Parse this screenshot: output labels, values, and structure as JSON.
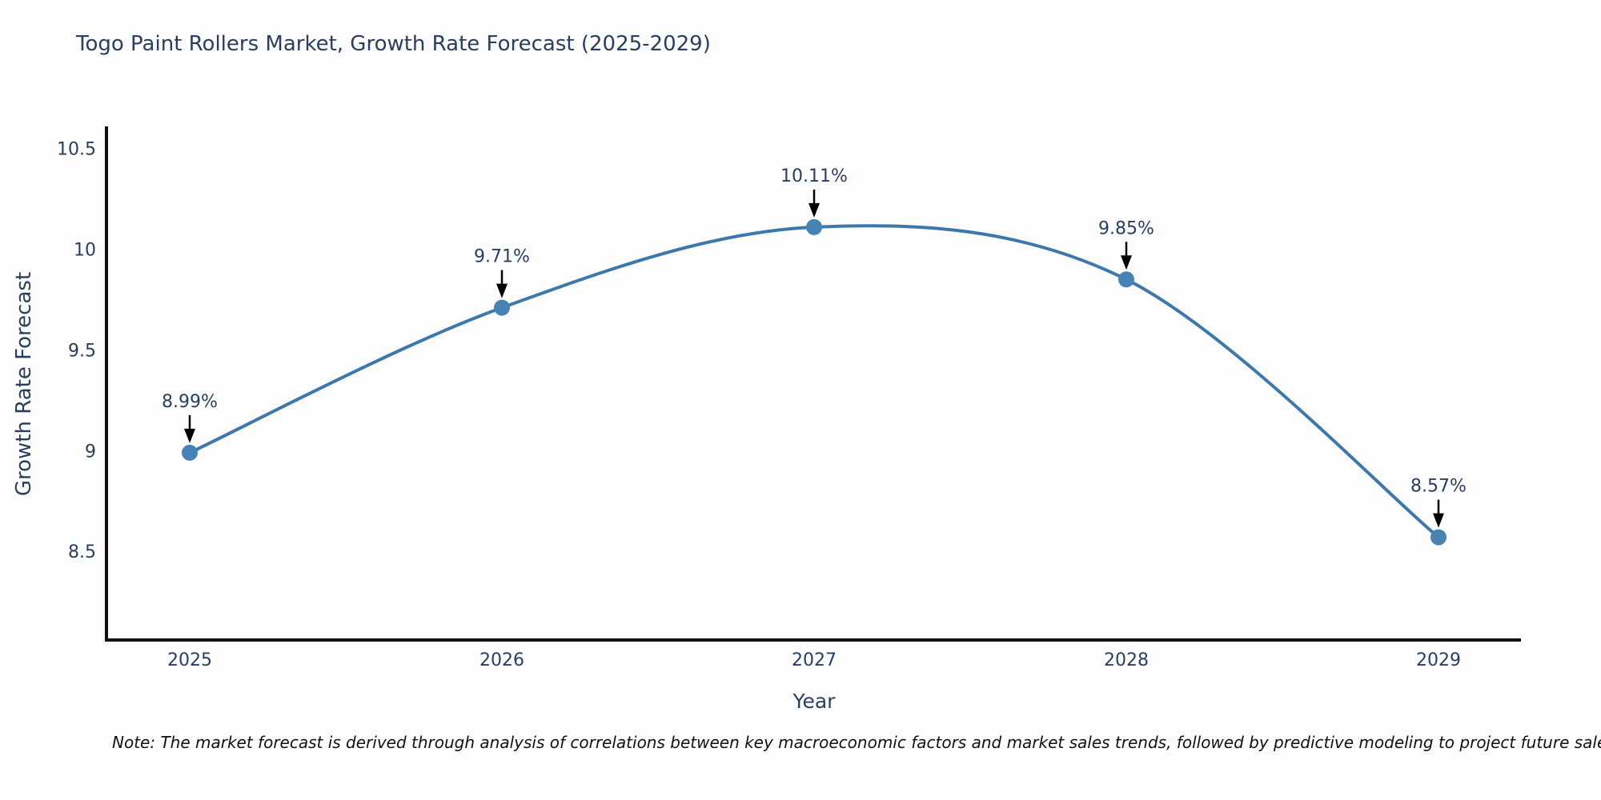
{
  "chart": {
    "colors": {
      "line": "#3d78ad",
      "marker": "#4682b4",
      "arrow": "#000000",
      "axis": "#111111",
      "text": "#2a3f5f",
      "background": "#fdfdfd"
    }
  },
  "chart_data": {
    "type": "line",
    "title": "Togo Paint Rollers Market, Growth Rate Forecast (2025-2029)",
    "xlabel": "Year",
    "ylabel": "Growth Rate Forecast",
    "categories": [
      "2025",
      "2026",
      "2027",
      "2028",
      "2029"
    ],
    "values": [
      8.99,
      9.71,
      10.11,
      9.85,
      8.57
    ],
    "point_labels": [
      "8.99%",
      "9.71%",
      "10.11%",
      "9.85%",
      "8.57%"
    ],
    "yticks": [
      10.5,
      10,
      9.5,
      9,
      8.5
    ],
    "ylim": [
      8.06,
      10.61
    ],
    "line_shape": "spline",
    "grid": false,
    "legend": "none",
    "note": "Note: The market forecast is derived through analysis of correlations between key macroeconomic factors and market sales trends, followed by predictive modeling to project future sales"
  }
}
